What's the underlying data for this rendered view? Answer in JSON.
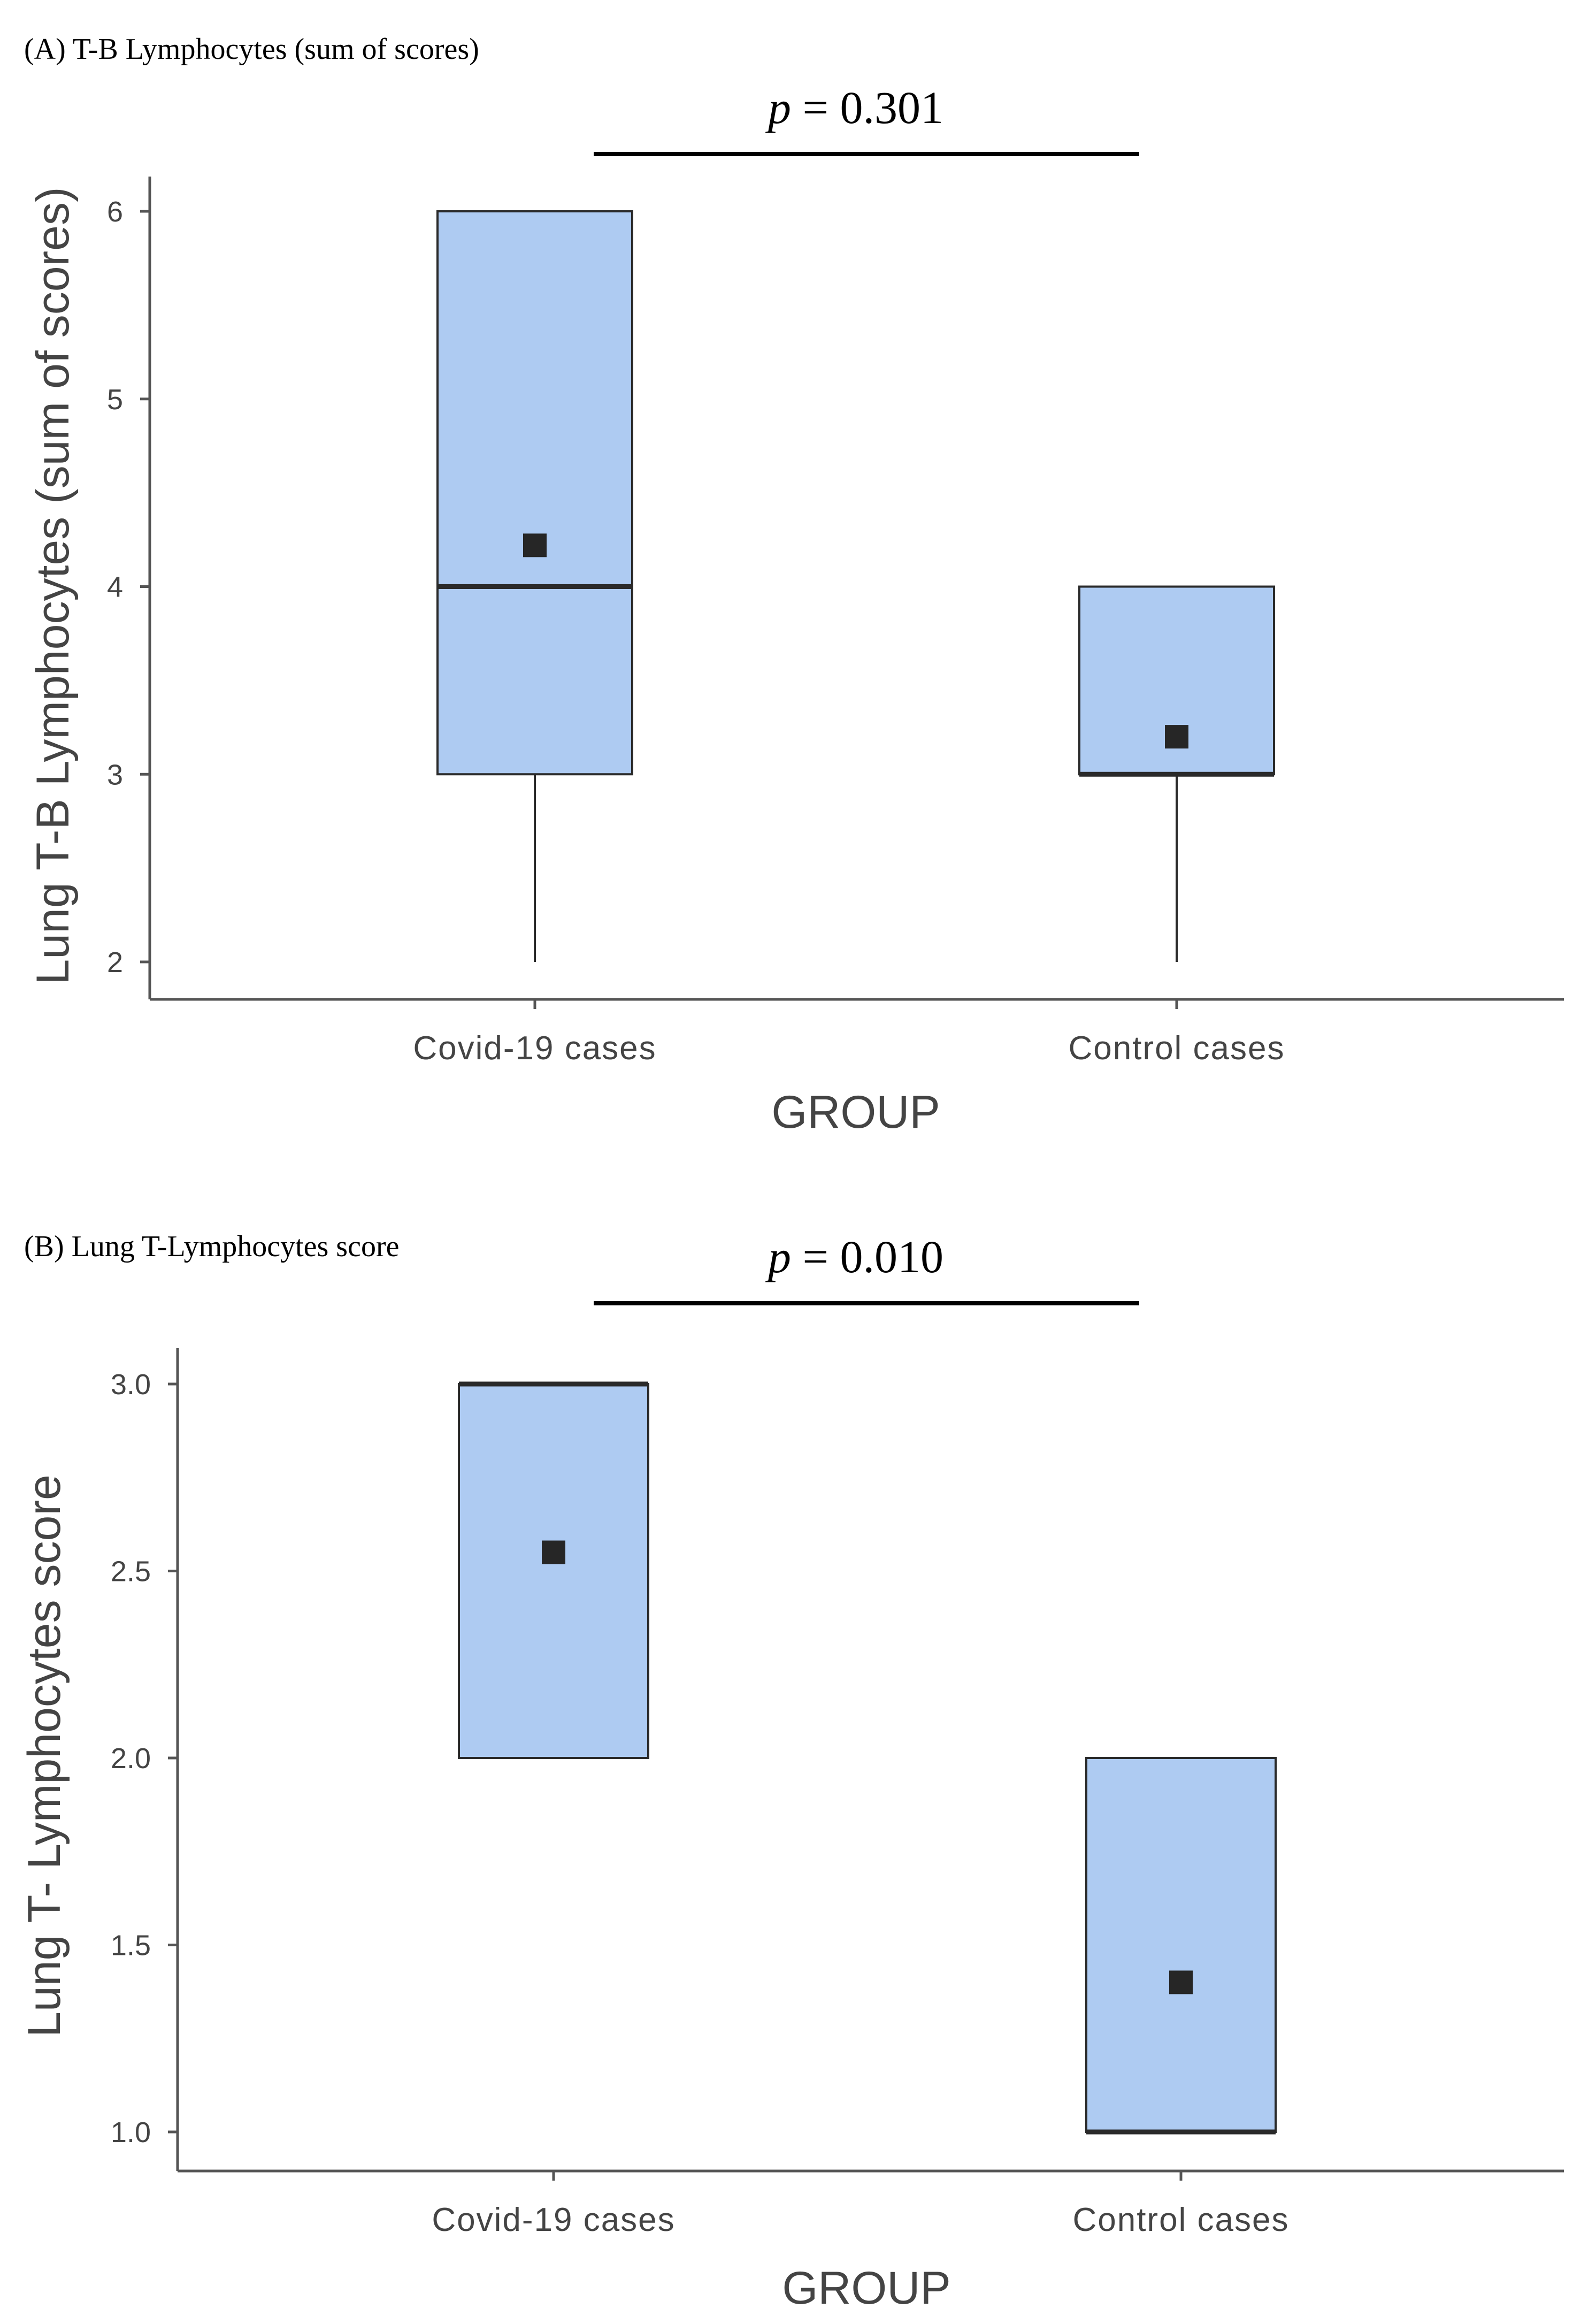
{
  "chart_data": [
    {
      "type": "box",
      "panel_title": "(A) T-B Lymphocytes (sum of scores)",
      "p_label": "p",
      "p_value_text": "= 0.301",
      "xlabel": "GROUP",
      "ylabel": "Lung T-B Lymphocytes (sum of scores)",
      "categories": [
        "Covid-19 cases",
        "Control cases"
      ],
      "ylim": [
        2,
        6
      ],
      "yticks": [
        2,
        3,
        4,
        5,
        6
      ],
      "ytick_labels": [
        "2",
        "3",
        "4",
        "5",
        "6"
      ],
      "boxes": [
        {
          "category": "Covid-19 cases",
          "whisker_low": 2,
          "q1": 3,
          "median": 4,
          "q3": 6,
          "whisker_high": 6,
          "mean": 4.22
        },
        {
          "category": "Control cases",
          "whisker_low": 2,
          "q1": 3,
          "median": 3,
          "q3": 4,
          "whisker_high": 4,
          "mean": 3.2
        }
      ]
    },
    {
      "type": "box",
      "panel_title": "(B) Lung T-Lymphocytes score",
      "p_label": "p",
      "p_value_text": "= 0.010",
      "xlabel": "GROUP",
      "ylabel": "Lung T- Lymphocytes score",
      "categories": [
        "Covid-19 cases",
        "Control cases"
      ],
      "ylim": [
        1.0,
        3.0
      ],
      "yticks": [
        1.0,
        1.5,
        2.0,
        2.5,
        3.0
      ],
      "ytick_labels": [
        "1.0",
        "1.5",
        "2.0",
        "2.5",
        "3.0"
      ],
      "boxes": [
        {
          "category": "Covid-19 cases",
          "whisker_low": 2,
          "q1": 2,
          "median": 3,
          "q3": 3,
          "whisker_high": 3,
          "mean": 2.55
        },
        {
          "category": "Control cases",
          "whisker_low": 1,
          "q1": 1,
          "median": 1,
          "q3": 2,
          "whisker_high": 2,
          "mean": 1.4
        }
      ]
    }
  ],
  "colors": {
    "box_fill": "#aecbf2",
    "box_stroke": "#2a2a2a",
    "axis": "#555555",
    "mean_marker": "#262626"
  }
}
